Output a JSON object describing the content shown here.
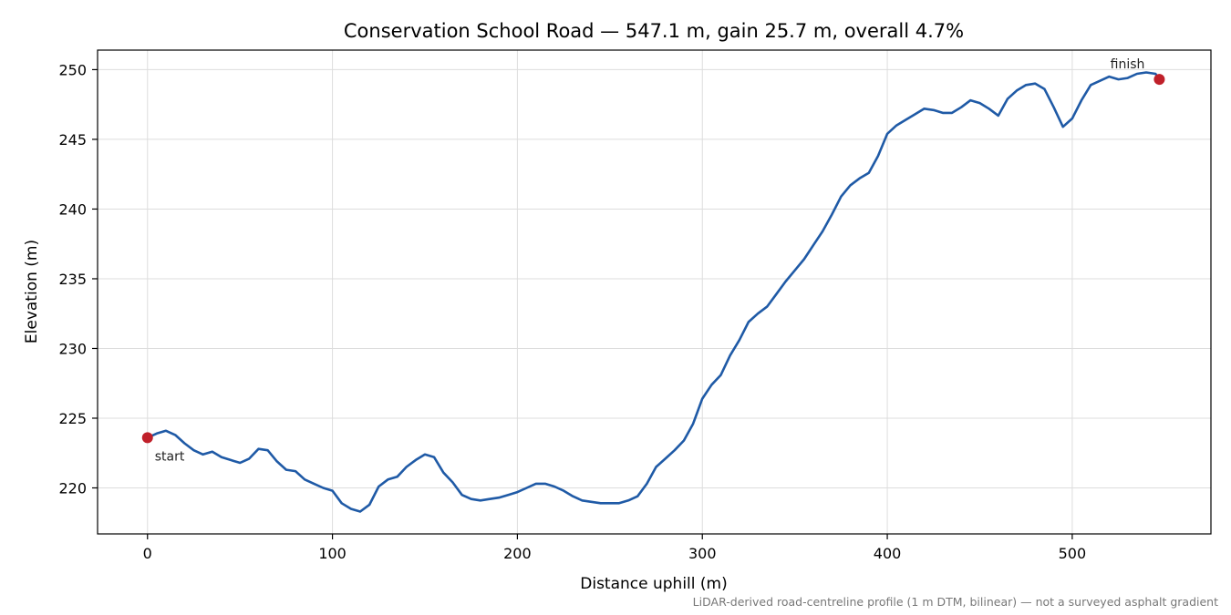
{
  "chart_data": {
    "type": "line",
    "title": "Conservation School Road — 547.1 m, gain 25.7 m, overall 4.7%",
    "xlabel": "Distance uphill (m)",
    "ylabel": "Elevation (m)",
    "footnote": "LiDAR-derived road-centreline profile (1 m DTM, bilinear) — not a surveyed asphalt gradient",
    "xlim": [
      -27,
      575
    ],
    "ylim": [
      216.7,
      251.4
    ],
    "x_ticks": [
      0,
      100,
      200,
      300,
      400,
      500
    ],
    "y_ticks": [
      220,
      225,
      230,
      235,
      240,
      245,
      250
    ],
    "grid": true,
    "colors": {
      "line": "#1f5aa6",
      "markers": "#c0202a",
      "grid": "#dddddd"
    },
    "series": [
      {
        "x": [
          0,
          5,
          10,
          15,
          20,
          25,
          30,
          35,
          40,
          45,
          50,
          55,
          60,
          65,
          70,
          75,
          80,
          85,
          90,
          95,
          100,
          105,
          110,
          115,
          120,
          125,
          130,
          135,
          140,
          145,
          150,
          155,
          160,
          165,
          170,
          175,
          180,
          185,
          190,
          195,
          200,
          205,
          210,
          215,
          220,
          225,
          230,
          235,
          240,
          245,
          250,
          255,
          260,
          265,
          270,
          275,
          280,
          285,
          290,
          295,
          300,
          305,
          310,
          315,
          320,
          325,
          330,
          335,
          340,
          345,
          350,
          355,
          360,
          365,
          370,
          375,
          380,
          385,
          390,
          395,
          400,
          405,
          410,
          415,
          420,
          425,
          430,
          435,
          440,
          445,
          450,
          455,
          460,
          465,
          470,
          475,
          480,
          485,
          490,
          495,
          500,
          505,
          510,
          515,
          520,
          525,
          530,
          535,
          540,
          545,
          547.1
        ],
        "y": [
          223.6,
          223.9,
          224.1,
          223.8,
          223.2,
          222.7,
          222.4,
          222.6,
          222.2,
          222.0,
          221.8,
          222.1,
          222.8,
          222.7,
          221.9,
          221.3,
          221.2,
          220.6,
          220.3,
          220.0,
          219.8,
          218.9,
          218.5,
          218.3,
          218.8,
          220.1,
          220.6,
          220.8,
          221.5,
          222.0,
          222.4,
          222.2,
          221.1,
          220.4,
          219.5,
          219.2,
          219.1,
          219.2,
          219.3,
          219.5,
          219.7,
          220.0,
          220.3,
          220.3,
          220.1,
          219.8,
          219.4,
          219.1,
          219.0,
          218.9,
          218.9,
          218.9,
          219.1,
          219.4,
          220.3,
          221.5,
          222.1,
          222.7,
          223.4,
          224.6,
          226.4,
          227.4,
          228.1,
          229.5,
          230.6,
          231.9,
          232.5,
          233.0,
          233.9,
          234.8,
          235.6,
          236.4,
          237.4,
          238.4,
          239.6,
          240.9,
          241.7,
          242.2,
          242.6,
          243.8,
          245.4,
          246.0,
          246.4,
          246.8,
          247.2,
          247.1,
          246.9,
          246.9,
          247.3,
          247.8,
          247.6,
          247.2,
          246.7,
          247.9,
          248.5,
          248.9,
          249.0,
          248.6,
          247.3,
          245.9,
          246.5,
          247.8,
          248.9,
          249.2,
          249.5,
          249.3,
          249.4,
          249.7,
          249.8,
          249.7,
          249.3
        ]
      }
    ],
    "annotations": [
      {
        "label": "start",
        "x": 0,
        "y": 223.6
      },
      {
        "label": "finish",
        "x": 547.1,
        "y": 249.3
      }
    ]
  }
}
